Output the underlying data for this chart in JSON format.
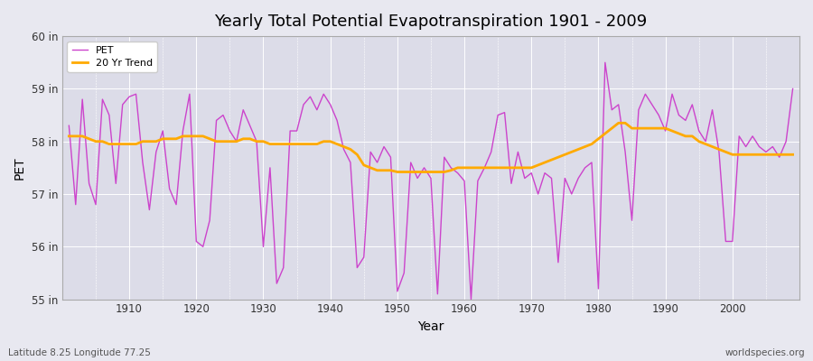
{
  "title": "Yearly Total Potential Evapotranspiration 1901 - 2009",
  "xlabel": "Year",
  "ylabel": "PET",
  "bg_color": "#e8e8f0",
  "plot_bg_color": "#dcdce8",
  "pet_color": "#cc44cc",
  "trend_color": "#ffaa00",
  "years": [
    1901,
    1902,
    1903,
    1904,
    1905,
    1906,
    1907,
    1908,
    1909,
    1910,
    1911,
    1912,
    1913,
    1914,
    1915,
    1916,
    1917,
    1918,
    1919,
    1920,
    1921,
    1922,
    1923,
    1924,
    1925,
    1926,
    1927,
    1928,
    1929,
    1930,
    1931,
    1932,
    1933,
    1934,
    1935,
    1936,
    1937,
    1938,
    1939,
    1940,
    1941,
    1942,
    1943,
    1944,
    1945,
    1946,
    1947,
    1948,
    1949,
    1950,
    1951,
    1952,
    1953,
    1954,
    1955,
    1956,
    1957,
    1958,
    1959,
    1960,
    1961,
    1962,
    1963,
    1964,
    1965,
    1966,
    1967,
    1968,
    1969,
    1970,
    1971,
    1972,
    1973,
    1974,
    1975,
    1976,
    1977,
    1978,
    1979,
    1980,
    1981,
    1982,
    1983,
    1984,
    1985,
    1986,
    1987,
    1988,
    1989,
    1990,
    1991,
    1992,
    1993,
    1994,
    1995,
    1996,
    1997,
    1998,
    1999,
    2000,
    2001,
    2002,
    2003,
    2004,
    2005,
    2006,
    2007,
    2008,
    2009
  ],
  "pet": [
    58.3,
    56.8,
    58.8,
    57.2,
    56.8,
    58.8,
    58.5,
    57.2,
    58.7,
    58.85,
    58.9,
    57.6,
    56.7,
    57.8,
    58.2,
    57.1,
    56.8,
    58.2,
    58.9,
    56.1,
    56.0,
    56.5,
    58.4,
    58.5,
    58.2,
    58.0,
    58.6,
    58.3,
    58.0,
    56.0,
    57.5,
    55.3,
    55.6,
    58.2,
    58.2,
    58.7,
    58.85,
    58.6,
    58.9,
    58.7,
    58.4,
    57.85,
    57.6,
    55.6,
    55.8,
    57.8,
    57.6,
    57.9,
    57.7,
    55.15,
    55.5,
    57.6,
    57.3,
    57.5,
    57.3,
    55.1,
    57.7,
    57.5,
    57.4,
    57.25,
    55.0,
    57.25,
    57.5,
    57.8,
    58.5,
    58.55,
    57.2,
    57.8,
    57.3,
    57.4,
    57.0,
    57.4,
    57.3,
    55.7,
    57.3,
    57.0,
    57.3,
    57.5,
    57.6,
    55.2,
    59.5,
    58.6,
    58.7,
    57.8,
    56.5,
    58.6,
    58.9,
    58.7,
    58.5,
    58.2,
    58.9,
    58.5,
    58.4,
    58.7,
    58.2,
    58.0,
    58.6,
    57.8,
    56.1,
    56.1,
    58.1,
    57.9,
    58.1,
    57.9,
    57.8,
    57.9,
    57.7,
    58.0,
    59.0
  ],
  "trend": [
    58.1,
    58.1,
    58.1,
    58.05,
    58.0,
    58.0,
    57.95,
    57.95,
    57.95,
    57.95,
    57.95,
    58.0,
    58.0,
    58.0,
    58.05,
    58.05,
    58.05,
    58.1,
    58.1,
    58.1,
    58.1,
    58.05,
    58.0,
    58.0,
    58.0,
    58.0,
    58.05,
    58.05,
    58.0,
    58.0,
    57.95,
    57.95,
    57.95,
    57.95,
    57.95,
    57.95,
    57.95,
    57.95,
    58.0,
    58.0,
    57.95,
    57.9,
    57.85,
    57.75,
    57.55,
    57.5,
    57.45,
    57.45,
    57.45,
    57.42,
    57.42,
    57.42,
    57.42,
    57.42,
    57.42,
    57.42,
    57.42,
    57.45,
    57.5,
    57.5,
    57.5,
    57.5,
    57.5,
    57.5,
    57.5,
    57.5,
    57.5,
    57.5,
    57.5,
    57.5,
    57.55,
    57.6,
    57.65,
    57.7,
    57.75,
    57.8,
    57.85,
    57.9,
    57.95,
    58.05,
    58.15,
    58.25,
    58.35,
    58.35,
    58.25,
    58.25,
    58.25,
    58.25,
    58.25,
    58.25,
    58.2,
    58.15,
    58.1,
    58.1,
    58.0,
    57.95,
    57.9,
    57.85,
    57.8,
    57.75,
    57.75,
    57.75,
    57.75,
    57.75,
    57.75,
    57.75,
    57.75,
    57.75,
    57.75
  ],
  "ylim": [
    55.0,
    60.0
  ],
  "yticks": [
    55,
    56,
    57,
    58,
    59,
    60
  ],
  "ytick_labels": [
    "55 in",
    "56 in",
    "57 in",
    "58 in",
    "59 in",
    "60 in"
  ],
  "xlim": [
    1900,
    2010
  ],
  "xticks": [
    1910,
    1920,
    1930,
    1940,
    1950,
    1960,
    1970,
    1980,
    1990,
    2000
  ],
  "footnote_left": "Latitude 8.25 Longitude 77.25",
  "footnote_right": "worldspecies.org"
}
